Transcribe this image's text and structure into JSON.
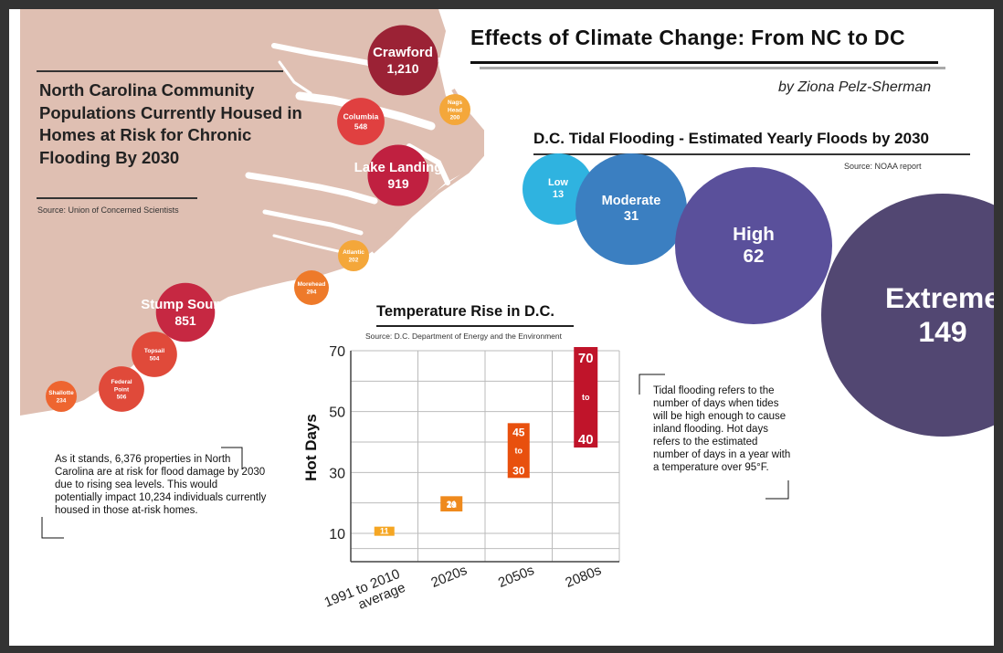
{
  "title": "Effects of Climate Change: From NC to DC",
  "byline": "by Ziona Pelz-Sherman",
  "nc": {
    "heading": "North Carolina Community Populations Currently Housed in Homes at Risk for Chronic Flooding By 2030",
    "source": "Source: Union of Concerned Scientists",
    "note": "As it stands, 6,376 properties in North Carolina are at risk for flood damage by 2030 due to rising sea levels. This would potentially impact 10,234 individuals currently housed in those at-risk homes.",
    "colors": {
      "land": "#dfbfb2",
      "water": "#ffffff"
    }
  },
  "tidal": {
    "heading": "D.C. Tidal Flooding - Estimated Yearly Floods by 2030",
    "source": "Source: NOAA report",
    "note": "Tidal flooding refers to the number of days when tides will be high enough to cause inland flooding. Hot days refers to the estimated number of days in a year with a temperature over 95°F."
  },
  "temp": {
    "title": "Temperature Rise in D.C.",
    "source": "Source: D.C. Department of Energy and the Environment"
  },
  "chart_data": [
    {
      "type": "scatter",
      "title": "North Carolina Community Populations Currently Housed in Homes at Risk for Chronic Flooding By 2030",
      "points": [
        {
          "label": "Crawford",
          "value": 1210,
          "display": "1,210",
          "color": "#9b2235"
        },
        {
          "label": "Columbia",
          "value": 548,
          "display": "548",
          "color": "#e04040"
        },
        {
          "label": "Nags Head",
          "value": 200,
          "display": "200",
          "color": "#f4a73a"
        },
        {
          "label": "Lake Landing",
          "value": 919,
          "display": "919",
          "color": "#c02040"
        },
        {
          "label": "Atlantic",
          "value": 202,
          "display": "202",
          "color": "#f4a73a"
        },
        {
          "label": "Morehead",
          "value": 294,
          "display": "294",
          "color": "#ee7a2a"
        },
        {
          "label": "Stump Sound",
          "value": 851,
          "display": "851",
          "color": "#c62842"
        },
        {
          "label": "Topsail",
          "value": 504,
          "display": "504",
          "color": "#e04a3a"
        },
        {
          "label": "Federal Point",
          "value": 506,
          "display": "506",
          "color": "#e04a3a"
        },
        {
          "label": "Shallotte",
          "value": 234,
          "display": "234",
          "color": "#ee6530"
        }
      ]
    },
    {
      "type": "bar",
      "title": "D.C. Tidal Flooding - Estimated Yearly Floods by 2030",
      "categories": [
        "Low",
        "Moderate",
        "High",
        "Extreme"
      ],
      "values": [
        13,
        31,
        62,
        149
      ],
      "colors": [
        "#2fb3e0",
        "#3b7fc1",
        "#5a509b",
        "#524772"
      ]
    },
    {
      "type": "bar",
      "title": "Temperature Rise in D.C.",
      "ylabel": "Hot Days",
      "ylim": [
        0,
        70
      ],
      "yticks": [
        10,
        30,
        50,
        70
      ],
      "categories": [
        "1991 to 2010 average",
        "2020s",
        "2050s",
        "2080s"
      ],
      "ranges": [
        {
          "low": 11,
          "high": 11,
          "label": "11",
          "color": "#f5a623"
        },
        {
          "low": 19,
          "high": 21,
          "label_high": "21",
          "label_low": "19",
          "color": "#ef8a1d"
        },
        {
          "low": 30,
          "high": 45,
          "label_high": "45",
          "label_low": "30",
          "color": "#e8500e"
        },
        {
          "low": 40,
          "high": 70,
          "label_high": "70",
          "label_low": "40",
          "color": "#c0142a"
        }
      ],
      "range_joiner": "to"
    }
  ]
}
